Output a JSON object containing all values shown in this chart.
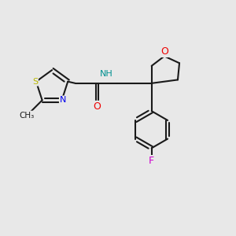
{
  "bg_color": "#e8e8e8",
  "bond_color": "#1a1a1a",
  "atom_colors": {
    "S": "#b8b800",
    "N": "#0000ee",
    "O": "#ee0000",
    "F": "#cc00cc",
    "C": "#1a1a1a",
    "H": "#009090"
  },
  "figsize": [
    3.0,
    3.0
  ],
  "dpi": 100,
  "lw": 1.5
}
